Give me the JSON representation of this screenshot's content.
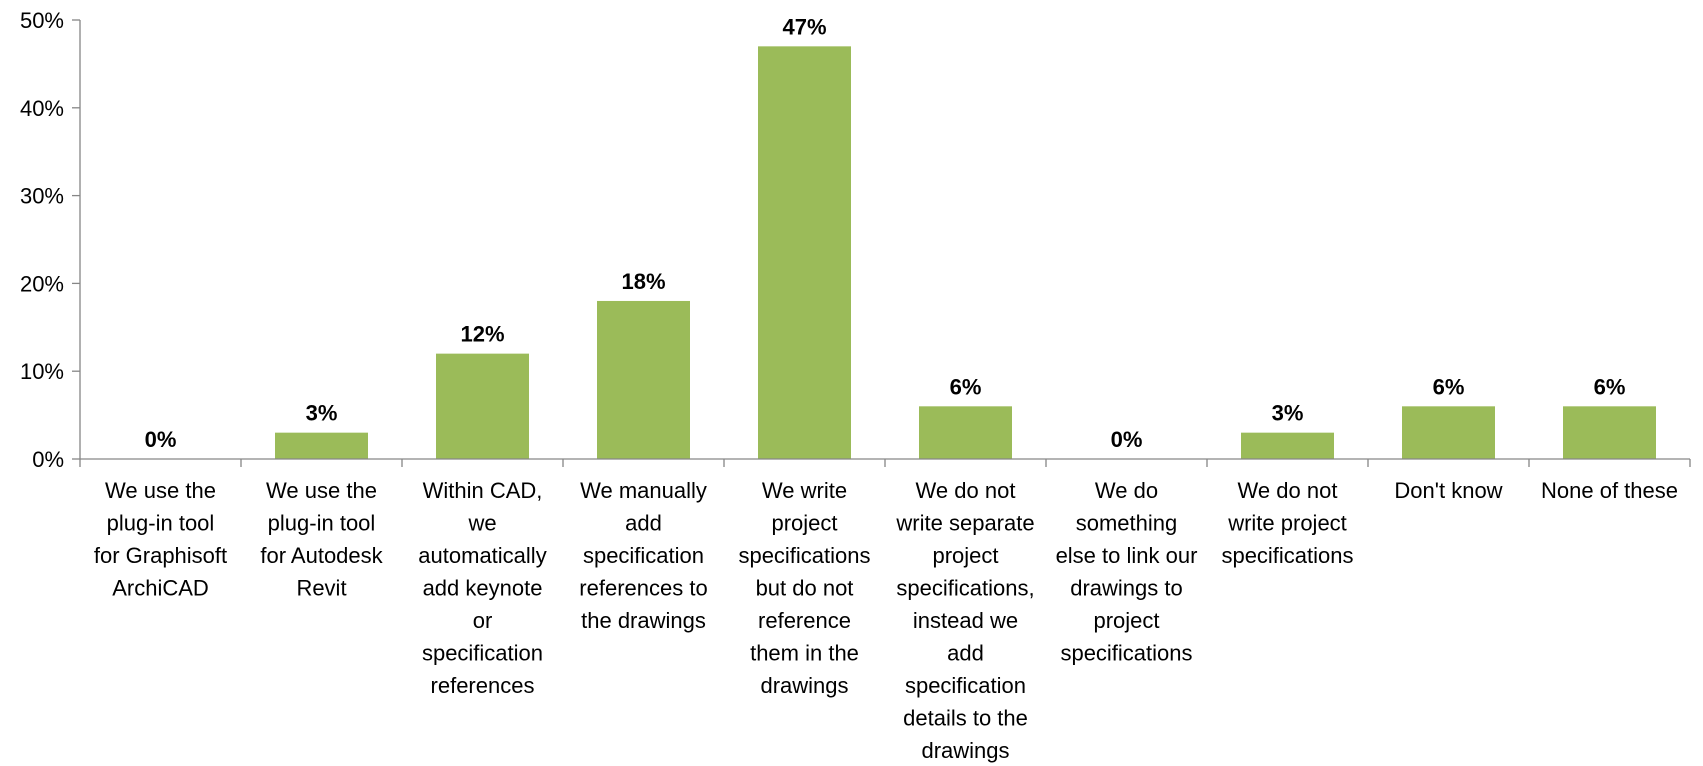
{
  "chart_data": {
    "type": "bar",
    "title": "",
    "xlabel": "",
    "ylabel": "",
    "ylim": [
      0,
      50
    ],
    "y_tick_values": [
      0,
      10,
      20,
      30,
      40,
      50
    ],
    "y_tick_labels": [
      "0%",
      "10%",
      "20%",
      "30%",
      "40%",
      "50%"
    ],
    "grid": false,
    "legend": "none",
    "bar_color": "#9BBB59",
    "categories": [
      [
        "We use the",
        "plug-in tool",
        "for Graphisoft",
        "ArchiCAD"
      ],
      [
        "We use the",
        "plug-in tool",
        "for Autodesk",
        "Revit"
      ],
      [
        "Within CAD,",
        "we",
        "automatically",
        "add keynote",
        "or",
        "specification",
        "references"
      ],
      [
        "We manually",
        "add",
        "specification",
        "references to",
        "the drawings"
      ],
      [
        "We write",
        "project",
        "specifications",
        "but do not",
        "reference",
        "them in the",
        "drawings"
      ],
      [
        "We do not",
        "write separate",
        "project",
        "specifications,",
        "instead we",
        "add",
        "specification",
        "details to the",
        "drawings"
      ],
      [
        "We do",
        "something",
        "else to link our",
        "drawings to",
        "project",
        "specifications"
      ],
      [
        "We do not",
        "write project",
        "specifications"
      ],
      [
        "Don't know"
      ],
      [
        "None of these"
      ]
    ],
    "values": [
      0,
      3,
      12,
      18,
      47,
      6,
      0,
      3,
      6,
      6
    ],
    "data_labels": [
      "0%",
      "3%",
      "12%",
      "18%",
      "47%",
      "6%",
      "0%",
      "3%",
      "6%",
      "6%"
    ]
  }
}
